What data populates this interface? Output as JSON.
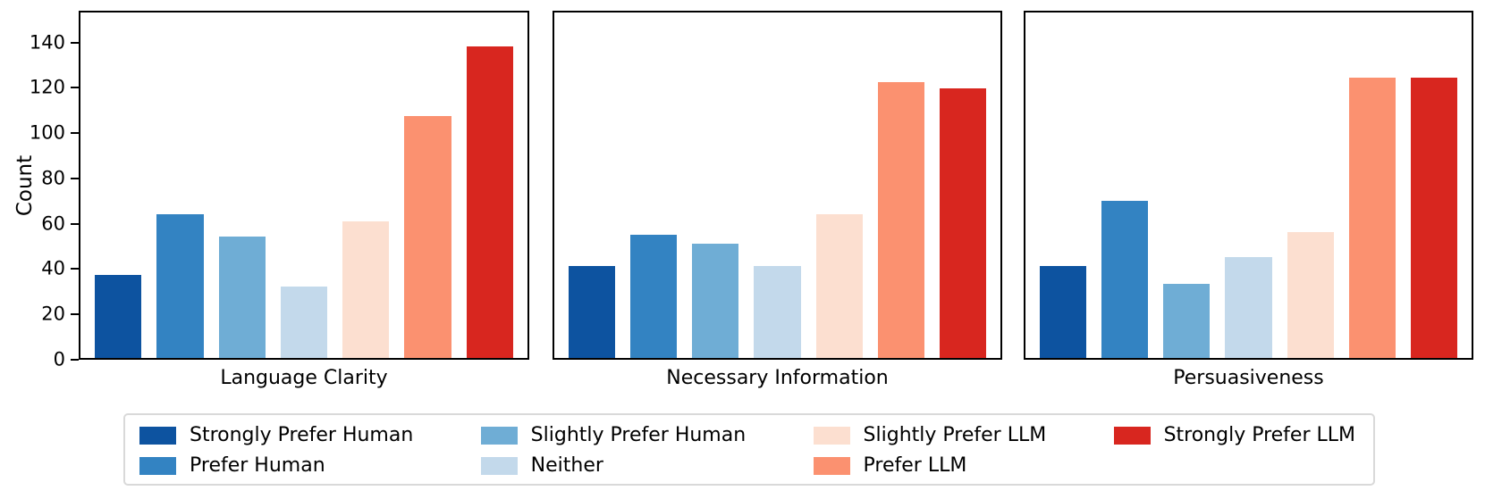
{
  "chart_data": {
    "type": "bar",
    "title": "",
    "ylabel": "Count",
    "xlabel": "",
    "yticks": [
      0,
      20,
      40,
      60,
      80,
      100,
      120,
      140
    ],
    "ylim": [
      0,
      154
    ],
    "grid": false,
    "categories": [
      "Strongly Prefer Human",
      "Prefer Human",
      "Slightly Prefer Human",
      "Neither",
      "Slightly Prefer LLM",
      "Prefer LLM",
      "Strongly Prefer LLM"
    ],
    "colors": [
      "#0d53a0",
      "#3383c2",
      "#6fadd5",
      "#c3d9eb",
      "#fcdfd0",
      "#fb9170",
      "#d8261f"
    ],
    "subplots": [
      {
        "xlabel": "Language Clarity",
        "values": [
          37,
          64,
          54,
          32,
          61,
          108,
          139
        ]
      },
      {
        "xlabel": "Necessary Information",
        "values": [
          41,
          55,
          51,
          41,
          64,
          123,
          120
        ]
      },
      {
        "xlabel": "Persuasiveness",
        "values": [
          41,
          70,
          33,
          45,
          56,
          125,
          125
        ]
      }
    ],
    "legend": {
      "position": "bottom",
      "ncol": 4,
      "column_major": true,
      "entries": [
        "Strongly Prefer Human",
        "Prefer Human",
        "Slightly Prefer Human",
        "Neither",
        "Slightly Prefer LLM",
        "Prefer LLM",
        "Strongly Prefer LLM"
      ]
    },
    "axis_color": "#000000",
    "legend_border_color": "#d9d9d9"
  }
}
